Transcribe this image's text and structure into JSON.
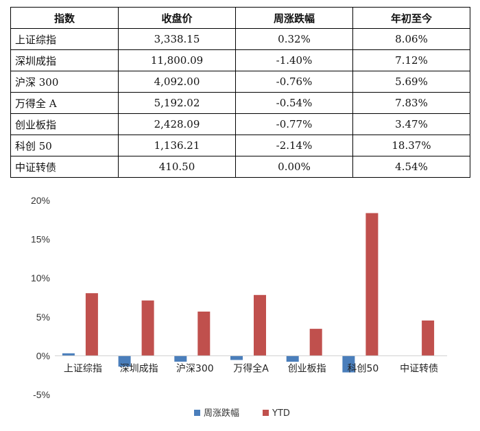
{
  "table": {
    "headers": [
      "指数",
      "收盘价",
      "周涨跌幅",
      "年初至今"
    ],
    "rows": [
      [
        "上证综指",
        "3,338.15",
        "0.32%",
        "8.06%"
      ],
      [
        "深圳成指",
        "11,800.09",
        "-1.40%",
        "7.12%"
      ],
      [
        "沪深 300",
        "4,092.00",
        "-0.76%",
        "5.69%"
      ],
      [
        "万得全 A",
        "5,192.02",
        "-0.54%",
        "7.83%"
      ],
      [
        "创业板指",
        "2,428.09",
        "-0.77%",
        "3.47%"
      ],
      [
        "科创 50",
        "1,136.21",
        "-2.14%",
        "18.37%"
      ],
      [
        "中证转债",
        "410.50",
        "0.00%",
        "4.54%"
      ]
    ]
  },
  "chart_data": {
    "type": "bar",
    "categories": [
      "上证综指",
      "深圳成指",
      "沪深300",
      "万得全A",
      "创业板指",
      "科创50",
      "中证转债"
    ],
    "series": [
      {
        "name": "周涨跌幅",
        "color": "#4a7ebb",
        "values": [
          0.32,
          -1.4,
          -0.76,
          -0.54,
          -0.77,
          -2.14,
          0.0
        ]
      },
      {
        "name": "YTD",
        "color": "#c0504d",
        "values": [
          8.06,
          7.12,
          5.69,
          7.83,
          3.47,
          18.37,
          4.54
        ]
      }
    ],
    "yticks": [
      "20%",
      "15%",
      "10%",
      "5%",
      "0%",
      "-5%"
    ],
    "ylim": [
      -5,
      20
    ],
    "legend_position": "bottom"
  }
}
